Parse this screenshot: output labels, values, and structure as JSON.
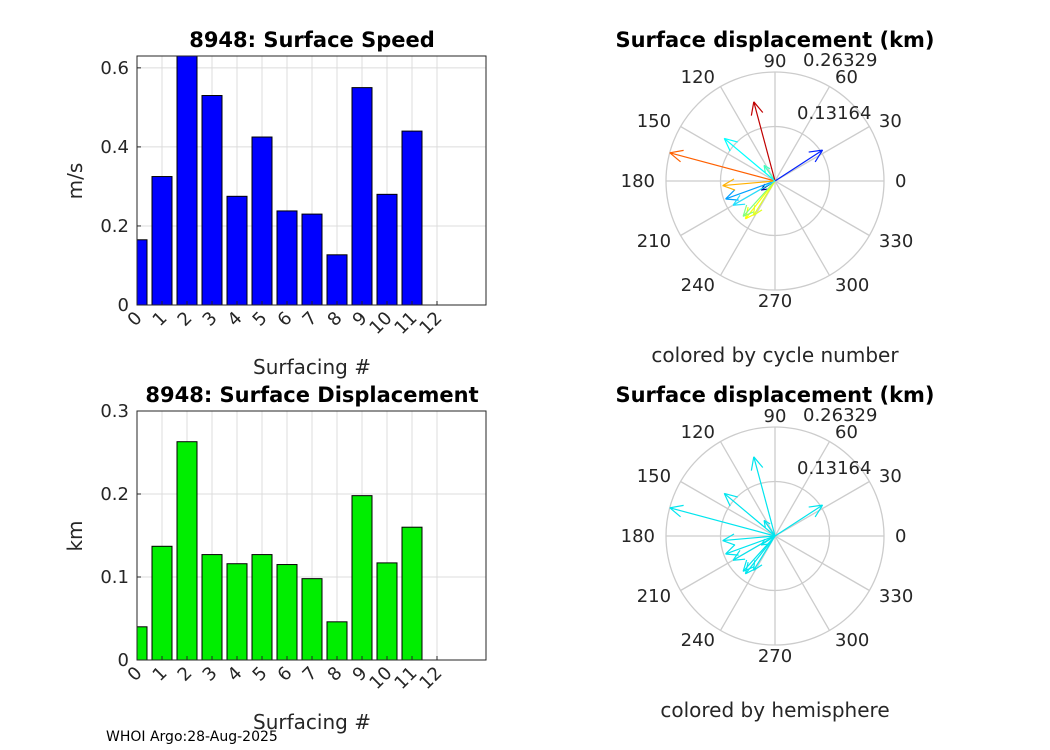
{
  "footer": "WHOI Argo:28-Aug-2025",
  "colors": {
    "speed_bar": "#0000ff",
    "disp_bar": "#00ee00",
    "hemisphere_arrow": "#00e5ee",
    "grid": "#dcdcdc"
  },
  "chart_data": [
    {
      "type": "bar",
      "title": "8948: Surface Speed",
      "xlabel": "Surfacing #",
      "ylabel": "m/s",
      "categories": [
        "0",
        "1",
        "2",
        "3",
        "4",
        "5",
        "6",
        "7",
        "8",
        "9",
        "10",
        "11",
        "12"
      ],
      "values": [
        0.165,
        0.325,
        0.63,
        0.53,
        0.275,
        0.425,
        0.238,
        0.23,
        0.127,
        0.55,
        0.28,
        0.44,
        null
      ],
      "ylim": [
        0,
        0.63
      ],
      "yticks": [
        0,
        0.2,
        0.4,
        0.6
      ],
      "ytick_labels": [
        "0",
        "0.2",
        "0.4",
        "0.6"
      ],
      "grid": true
    },
    {
      "type": "bar",
      "title": "8948: Surface Displacement",
      "xlabel": "Surfacing #",
      "ylabel": "km",
      "categories": [
        "0",
        "1",
        "2",
        "3",
        "4",
        "5",
        "6",
        "7",
        "8",
        "9",
        "10",
        "11",
        "12"
      ],
      "values": [
        0.04,
        0.137,
        0.263,
        0.127,
        0.116,
        0.127,
        0.115,
        0.098,
        0.046,
        0.198,
        0.117,
        0.16,
        null
      ],
      "ylim": [
        0,
        0.3
      ],
      "yticks": [
        0,
        0.1,
        0.2,
        0.3
      ],
      "ytick_labels": [
        "0",
        "0.1",
        "0.2",
        "0.3"
      ],
      "grid": true
    },
    {
      "type": "polar",
      "title": "Surface displacement (km)",
      "caption": "colored by cycle number",
      "rmax": 0.26329,
      "ring_labels": [
        "0.13164",
        "0.26329"
      ],
      "angle_labels": [
        "0",
        "30",
        "60",
        "90",
        "120",
        "150",
        "180",
        "210",
        "240",
        "270",
        "300",
        "330"
      ],
      "color_mode": "cycle",
      "vectors": [
        {
          "angle": 213,
          "r": 0.04,
          "color": "#00008f"
        },
        {
          "angle": 33,
          "r": 0.137,
          "color": "#0020ff"
        },
        {
          "angle": 165,
          "r": 0.263,
          "color": "#ff6000"
        },
        {
          "angle": 200,
          "r": 0.127,
          "color": "#00a0ff"
        },
        {
          "angle": 232,
          "r": 0.116,
          "color": "#ffff00"
        },
        {
          "angle": 185,
          "r": 0.127,
          "color": "#ffb000"
        },
        {
          "angle": 228,
          "r": 0.115,
          "color": "#80ff80"
        },
        {
          "angle": 238,
          "r": 0.098,
          "color": "#e0ff20"
        },
        {
          "angle": 125,
          "r": 0.046,
          "color": "#40ffc0"
        },
        {
          "angle": 105,
          "r": 0.198,
          "color": "#c00000"
        },
        {
          "angle": 210,
          "r": 0.117,
          "color": "#20e0ff"
        },
        {
          "angle": 140,
          "r": 0.16,
          "color": "#00ffff"
        }
      ]
    },
    {
      "type": "polar",
      "title": "Surface displacement (km)",
      "caption": "colored by hemisphere",
      "rmax": 0.26329,
      "ring_labels": [
        "0.13164",
        "0.26329"
      ],
      "angle_labels": [
        "0",
        "30",
        "60",
        "90",
        "120",
        "150",
        "180",
        "210",
        "240",
        "270",
        "300",
        "330"
      ],
      "color_mode": "hemisphere",
      "vectors": [
        {
          "angle": 213,
          "r": 0.04
        },
        {
          "angle": 33,
          "r": 0.137
        },
        {
          "angle": 165,
          "r": 0.263
        },
        {
          "angle": 200,
          "r": 0.127
        },
        {
          "angle": 232,
          "r": 0.116
        },
        {
          "angle": 185,
          "r": 0.127
        },
        {
          "angle": 228,
          "r": 0.115
        },
        {
          "angle": 238,
          "r": 0.098
        },
        {
          "angle": 125,
          "r": 0.046
        },
        {
          "angle": 105,
          "r": 0.198
        },
        {
          "angle": 210,
          "r": 0.117
        },
        {
          "angle": 140,
          "r": 0.16
        }
      ]
    }
  ]
}
